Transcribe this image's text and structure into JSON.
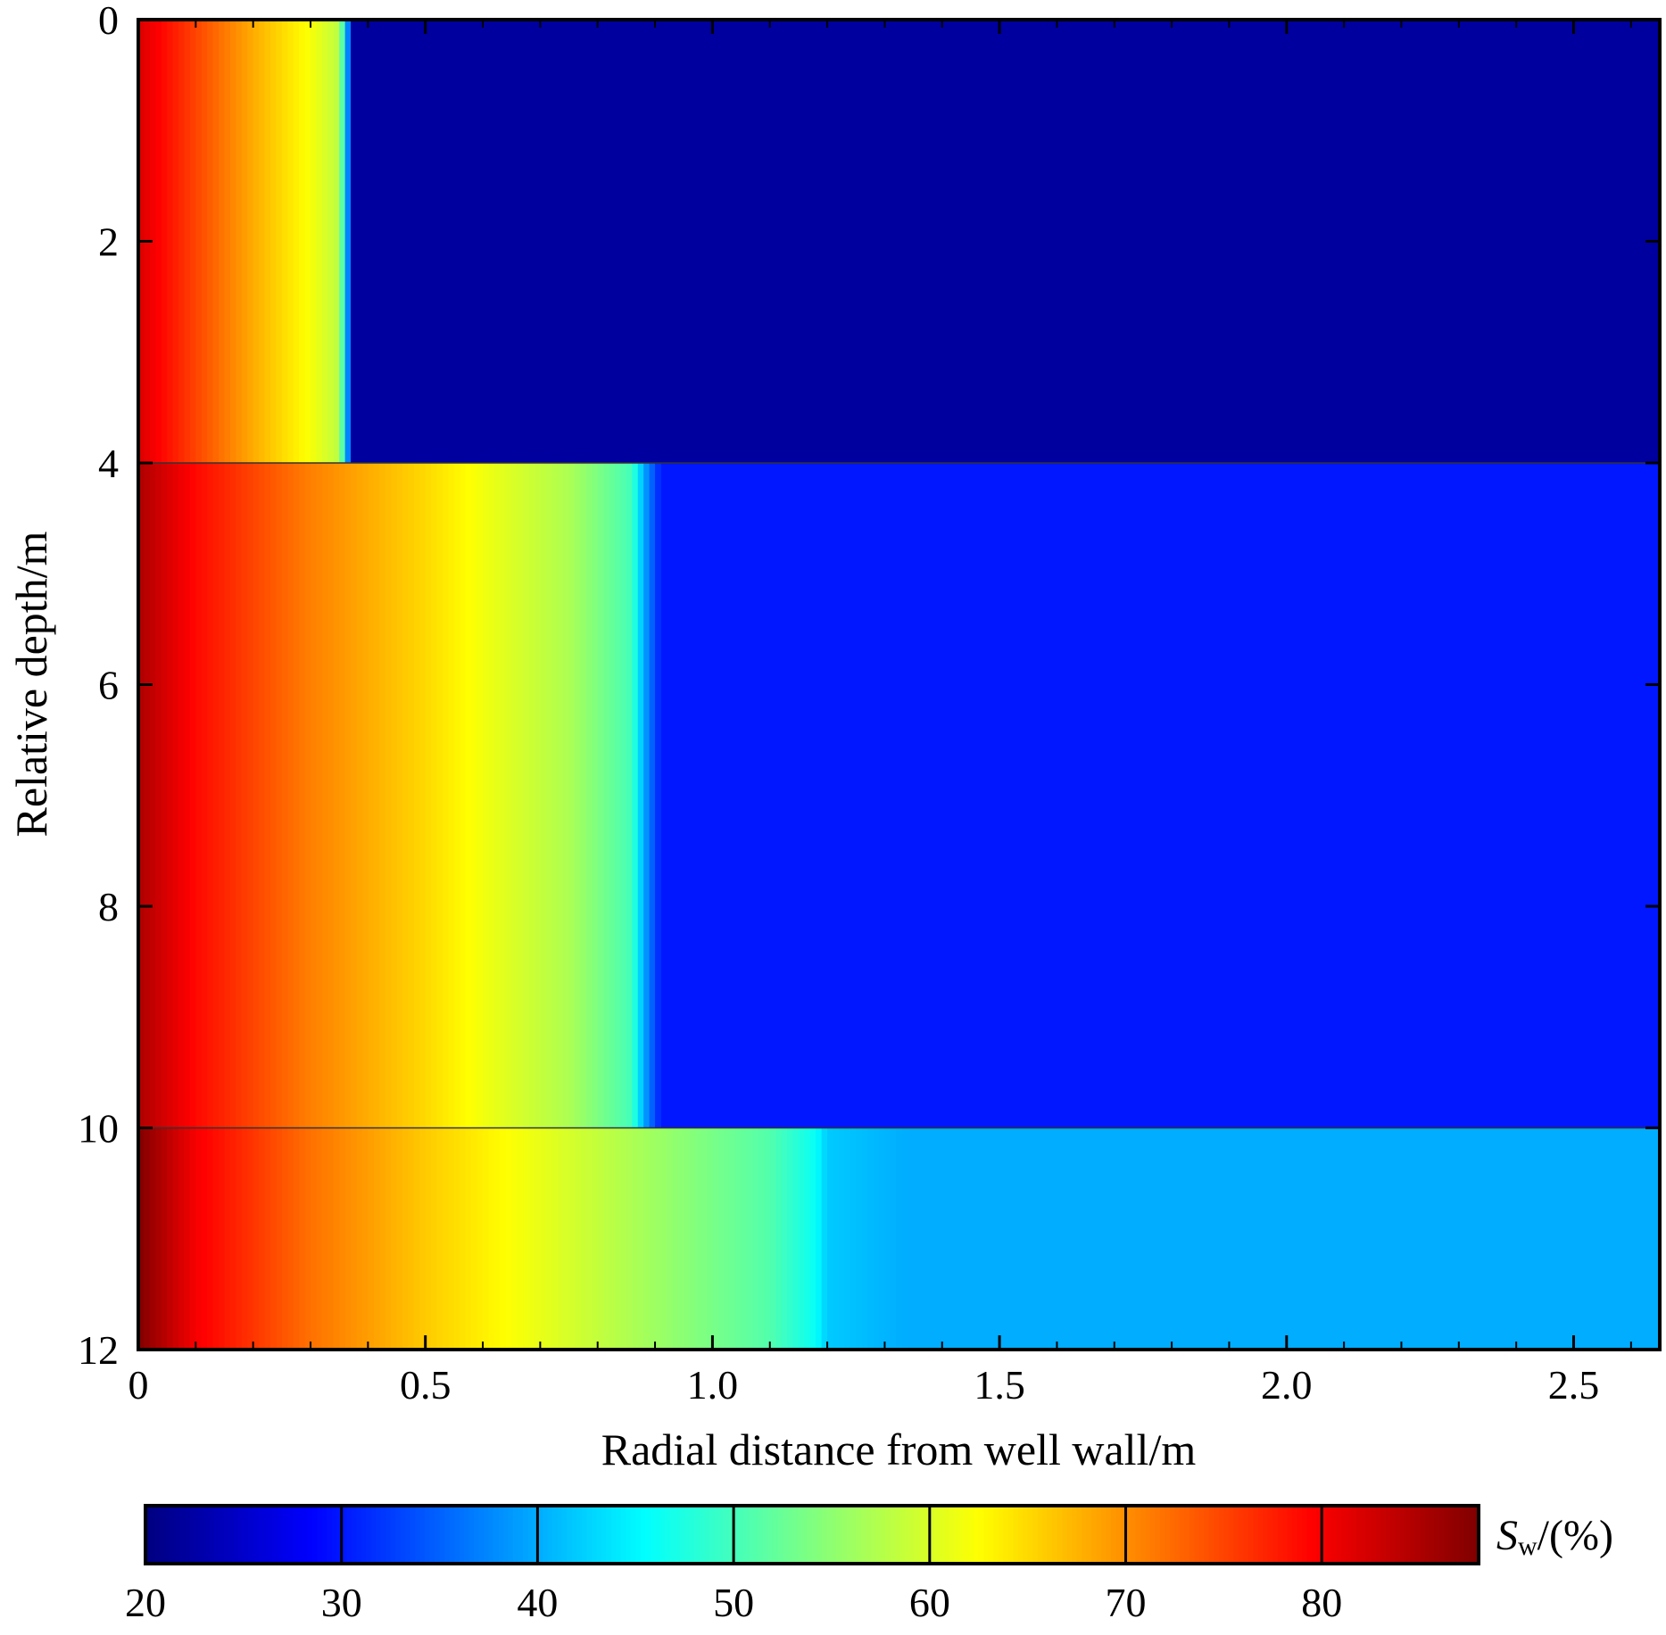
{
  "chart_data": {
    "type": "heatmap",
    "title": "",
    "xlabel": "Radial distance from well wall/m",
    "ylabel": "Relative depth/m",
    "xlim": [
      0,
      2.65
    ],
    "ylim": [
      0,
      12
    ],
    "y_inverted": true,
    "x_ticks": [
      "0",
      "0.5",
      "1.0",
      "1.5",
      "2.0",
      "2.5"
    ],
    "y_ticks": [
      "0",
      "2",
      "4",
      "6",
      "8",
      "10",
      "12"
    ],
    "colormap": "jet",
    "colorbar": {
      "label_main": "S",
      "label_sub": "w",
      "label_rest": "/(%)",
      "min": 20,
      "max": 88,
      "ticks": [
        "20",
        "30",
        "40",
        "50",
        "60",
        "70",
        "80"
      ],
      "separators": [
        30,
        40,
        50,
        60,
        70,
        80
      ],
      "placement": "bottom"
    },
    "layers": [
      {
        "depth_top": 0,
        "depth_bottom": 4,
        "profile": [
          [
            0,
            82
          ],
          [
            0.1,
            75
          ],
          [
            0.2,
            68
          ],
          [
            0.3,
            62
          ],
          [
            0.35,
            58
          ],
          [
            0.36,
            45
          ],
          [
            0.375,
            22
          ]
        ],
        "background": 22
      },
      {
        "depth_top": 4,
        "depth_bottom": 10,
        "profile": [
          [
            0,
            85
          ],
          [
            0.1,
            79
          ],
          [
            0.3,
            71
          ],
          [
            0.5,
            65
          ],
          [
            0.62,
            61
          ],
          [
            0.75,
            57
          ],
          [
            0.86,
            50
          ],
          [
            0.88,
            40
          ],
          [
            0.91,
            30
          ]
        ],
        "background": 30
      },
      {
        "depth_top": 10,
        "depth_bottom": 12,
        "profile": [
          [
            0,
            88
          ],
          [
            0.1,
            80
          ],
          [
            0.3,
            72
          ],
          [
            0.5,
            66
          ],
          [
            0.7,
            61
          ],
          [
            0.9,
            56
          ],
          [
            1.1,
            51
          ],
          [
            1.18,
            46
          ],
          [
            1.2,
            42
          ],
          [
            1.34,
            40
          ]
        ],
        "background": 40
      }
    ]
  }
}
